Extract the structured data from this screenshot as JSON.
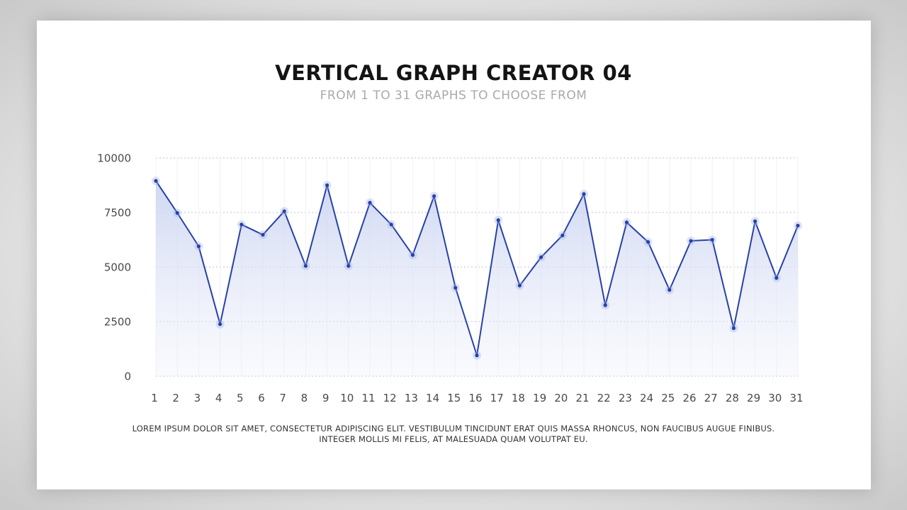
{
  "title": "VERTICAL GRAPH CREATOR 04",
  "subtitle": "FROM 1 TO 31 GRAPHS TO CHOOSE FROM",
  "footnote_line1": "LOREM IPSUM DOLOR SIT AMET, CONSECTETUR ADIPISCING ELIT. VESTIBULUM TINCIDUNT ERAT QUIS MASSA RHONCUS, NON FAUCIBUS AUGUE FINIBUS.",
  "footnote_line2": "INTEGER MOLLIS MI FELIS, AT MALESUADA QUAM VOLUTPAT EU.",
  "colors": {
    "line": "#2741a8",
    "fill": "#d7def5",
    "grid": "#b9c0d6"
  },
  "chart_data": {
    "type": "area",
    "title": "VERTICAL GRAPH CREATOR 04",
    "subtitle": "FROM 1 TO 31 GRAPHS TO CHOOSE FROM",
    "xlabel": "",
    "ylabel": "",
    "x": [
      "1",
      "2",
      "3",
      "4",
      "5",
      "6",
      "7",
      "8",
      "9",
      "10",
      "11",
      "12",
      "13",
      "14",
      "15",
      "16",
      "17",
      "18",
      "19",
      "20",
      "21",
      "22",
      "23",
      "24",
      "25",
      "26",
      "27",
      "28",
      "29",
      "30",
      "31"
    ],
    "ylim": [
      0,
      10000
    ],
    "yticks": [
      "0",
      "2500",
      "5000",
      "7500",
      "10000"
    ],
    "grid": true,
    "series": [
      {
        "values": [
          8950,
          7480,
          5950,
          2380,
          6950,
          6480,
          7560,
          5050,
          8750,
          5050,
          7950,
          6950,
          5550,
          8250,
          4050,
          950,
          7150,
          4150,
          5450,
          6450,
          8350,
          3250,
          7050,
          6150,
          3950,
          6200,
          6250,
          2200,
          7100,
          4500,
          6900
        ]
      }
    ]
  }
}
